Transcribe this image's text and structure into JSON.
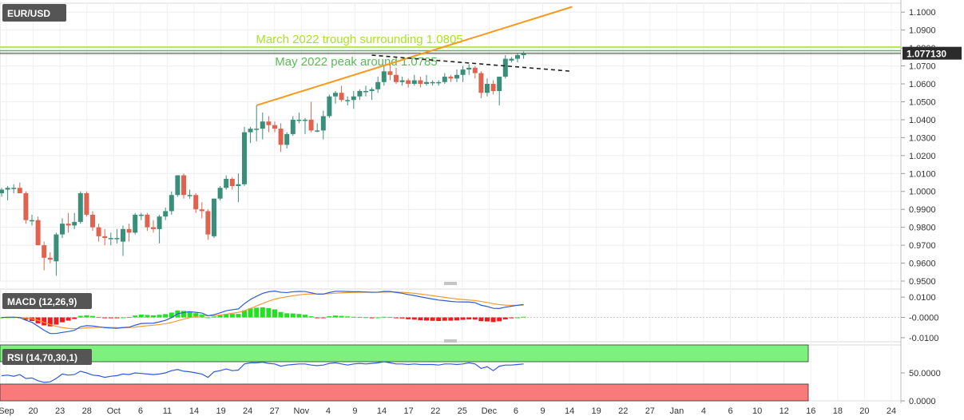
{
  "chart_data": [
    {
      "type": "candlestick",
      "symbol": "EUR/USD",
      "last_price_label": "1.077130",
      "ylim": [
        0.95,
        1.105
      ],
      "yticks": [
        "1.1000",
        "1.0900",
        "1.0800",
        "1.0700",
        "1.0600",
        "1.0500",
        "1.0400",
        "1.0300",
        "1.0200",
        "1.0100",
        "1.0000",
        "0.9900",
        "0.9800",
        "0.9700",
        "0.9600",
        "0.9500"
      ],
      "xlabels": [
        "Sep",
        "20",
        "23",
        "28",
        "Oct",
        "6",
        "11",
        "14",
        "19",
        "24",
        "27",
        "Nov",
        "4",
        "9",
        "14",
        "17",
        "22",
        "25",
        "Dec",
        "6",
        "9",
        "14",
        "19",
        "22",
        "27",
        "Jan",
        "4",
        "6",
        "10",
        "12",
        "16",
        "18",
        "20",
        "24"
      ],
      "annotations": [
        {
          "text": "March 2022 trough surrounding 1.0805",
          "level": 1.0805,
          "color": "#a8e22a"
        },
        {
          "text": "May 2022 peak around 1.0785",
          "level": 1.0785,
          "color": "#5cb85c"
        }
      ],
      "candles": [
        [
          0.999,
          1.002,
          0.997,
          1.001
        ],
        [
          1.001,
          1.003,
          0.995,
          1.002
        ],
        [
          1.002,
          1.004,
          0.999,
          1.002
        ],
        [
          1.002,
          1.005,
          0.999,
          0.999
        ],
        [
          0.999,
          1.0,
          0.982,
          0.984
        ],
        [
          0.984,
          0.987,
          0.981,
          0.984
        ],
        [
          0.984,
          0.986,
          0.97,
          0.97
        ],
        [
          0.97,
          0.972,
          0.956,
          0.963
        ],
        [
          0.963,
          0.966,
          0.96,
          0.962
        ],
        [
          0.961,
          0.977,
          0.953,
          0.976
        ],
        [
          0.976,
          0.985,
          0.974,
          0.982
        ],
        [
          0.982,
          0.988,
          0.977,
          0.981
        ],
        [
          0.981,
          0.988,
          0.979,
          0.983
        ],
        [
          0.983,
          1.0,
          0.982,
          0.999
        ],
        [
          0.999,
          1.0,
          0.986,
          0.987
        ],
        [
          0.987,
          0.989,
          0.978,
          0.98
        ],
        [
          0.98,
          0.982,
          0.972,
          0.975
        ],
        [
          0.975,
          0.979,
          0.97,
          0.974
        ],
        [
          0.974,
          0.977,
          0.97,
          0.974
        ],
        [
          0.974,
          0.979,
          0.971,
          0.974
        ],
        [
          0.972,
          0.981,
          0.964,
          0.979
        ],
        [
          0.979,
          0.982,
          0.972,
          0.977
        ],
        [
          0.977,
          0.988,
          0.976,
          0.987
        ],
        [
          0.987,
          0.988,
          0.984,
          0.987
        ],
        [
          0.987,
          0.988,
          0.978,
          0.98
        ],
        [
          0.98,
          0.984,
          0.977,
          0.979
        ],
        [
          0.979,
          0.987,
          0.971,
          0.986
        ],
        [
          0.986,
          0.991,
          0.984,
          0.989
        ],
        [
          0.989,
          1.0,
          0.987,
          0.998
        ],
        [
          0.998,
          1.009,
          0.997,
          1.009
        ],
        [
          1.009,
          1.01,
          0.996,
          0.998
        ],
        [
          0.998,
          1.001,
          0.996,
          0.998
        ],
        [
          0.998,
          0.999,
          0.988,
          0.99
        ],
        [
          0.99,
          0.994,
          0.985,
          0.989
        ],
        [
          0.989,
          0.99,
          0.973,
          0.976
        ],
        [
          0.975,
          0.996,
          0.974,
          0.996
        ],
        [
          0.996,
          1.003,
          0.995,
          1.002
        ],
        [
          1.002,
          1.009,
          1.001,
          1.007
        ],
        [
          1.007,
          1.008,
          1.001,
          1.003
        ],
        [
          1.003,
          1.01,
          0.994,
          1.004
        ],
        [
          1.004,
          1.036,
          1.003,
          1.033
        ],
        [
          1.033,
          1.036,
          1.027,
          1.035
        ],
        [
          1.035,
          1.048,
          1.028,
          1.035
        ],
        [
          1.035,
          1.044,
          1.029,
          1.039
        ],
        [
          1.039,
          1.042,
          1.033,
          1.037
        ],
        [
          1.037,
          1.039,
          1.033,
          1.035
        ],
        [
          1.035,
          1.038,
          1.022,
          1.026
        ],
        [
          1.026,
          1.033,
          1.024,
          1.032
        ],
        [
          1.032,
          1.042,
          1.031,
          1.04
        ],
        [
          1.04,
          1.044,
          1.038,
          1.04
        ],
        [
          1.04,
          1.041,
          1.032,
          1.04
        ],
        [
          1.04,
          1.05,
          1.033,
          1.034
        ],
        [
          1.034,
          1.038,
          1.033,
          1.034
        ],
        [
          1.034,
          1.045,
          1.029,
          1.042
        ],
        [
          1.042,
          1.054,
          1.041,
          1.053
        ],
        [
          1.053,
          1.056,
          1.049,
          1.055
        ],
        [
          1.055,
          1.059,
          1.05,
          1.051
        ],
        [
          1.051,
          1.053,
          1.048,
          1.051
        ],
        [
          1.051,
          1.056,
          1.046,
          1.053
        ],
        [
          1.053,
          1.057,
          1.051,
          1.056
        ],
        [
          1.056,
          1.059,
          1.053,
          1.056
        ],
        [
          1.056,
          1.058,
          1.051,
          1.057
        ],
        [
          1.057,
          1.064,
          1.055,
          1.061
        ],
        [
          1.061,
          1.07,
          1.059,
          1.067
        ],
        [
          1.067,
          1.071,
          1.062,
          1.065
        ],
        [
          1.065,
          1.069,
          1.06,
          1.061
        ],
        [
          1.061,
          1.064,
          1.059,
          1.062
        ],
        [
          1.062,
          1.063,
          1.058,
          1.06
        ],
        [
          1.06,
          1.065,
          1.059,
          1.062
        ],
        [
          1.062,
          1.064,
          1.058,
          1.06
        ],
        [
          1.06,
          1.065,
          1.059,
          1.061
        ],
        [
          1.061,
          1.062,
          1.059,
          1.061
        ],
        [
          1.061,
          1.062,
          1.059,
          1.061
        ],
        [
          1.061,
          1.066,
          1.06,
          1.064
        ],
        [
          1.064,
          1.065,
          1.061,
          1.063
        ],
        [
          1.063,
          1.068,
          1.061,
          1.065
        ],
        [
          1.065,
          1.07,
          1.061,
          1.068
        ],
        [
          1.068,
          1.071,
          1.065,
          1.069
        ],
        [
          1.069,
          1.07,
          1.063,
          1.066
        ],
        [
          1.066,
          1.067,
          1.052,
          1.055
        ],
        [
          1.055,
          1.063,
          1.053,
          1.06
        ],
        [
          1.06,
          1.062,
          1.054,
          1.056
        ],
        [
          1.056,
          1.064,
          1.048,
          1.064
        ],
        [
          1.064,
          1.076,
          1.063,
          1.074
        ],
        [
          1.073,
          1.075,
          1.072,
          1.074
        ],
        [
          1.074,
          1.077,
          1.072,
          1.076
        ],
        [
          1.076,
          1.078,
          1.074,
          1.077
        ]
      ],
      "trendline": {
        "from": {
          "index": 42,
          "value": 1.048
        },
        "to": {
          "index": 94,
          "value": 1.103
        }
      },
      "dashed_trendline": {
        "from": {
          "index": 61,
          "value": 1.076
        },
        "to": {
          "index": 94,
          "value": 1.067
        }
      }
    },
    {
      "type": "macd",
      "label": "MACD (12,26,9)",
      "yticks": [
        "0.0100",
        "-0.0000",
        "-0.0100"
      ],
      "ylim": [
        -0.012,
        0.014
      ]
    },
    {
      "type": "rsi",
      "label": "RSI (14,70,30,1)",
      "yticks": [
        "50.0000",
        "0.0000"
      ],
      "ylim": [
        0,
        100
      ],
      "overbought": 70,
      "oversold": 30,
      "values": [
        45,
        46,
        44,
        47,
        40,
        41,
        36,
        33,
        34,
        40,
        48,
        46,
        47,
        53,
        50,
        46,
        45,
        42,
        44,
        45,
        48,
        47,
        50,
        49,
        48,
        47,
        48,
        50,
        54,
        56,
        53,
        52,
        50,
        48,
        42,
        52,
        54,
        57,
        54,
        55,
        66,
        68,
        68,
        69,
        67,
        66,
        62,
        64,
        65,
        66,
        66,
        64,
        63,
        64,
        67,
        68,
        66,
        64,
        66,
        67,
        66,
        67,
        68,
        70,
        68,
        66,
        66,
        65,
        66,
        65,
        65,
        65,
        64,
        66,
        66,
        65,
        66,
        68,
        66,
        58,
        61,
        54,
        62,
        64,
        64,
        65,
        66
      ]
    }
  ]
}
